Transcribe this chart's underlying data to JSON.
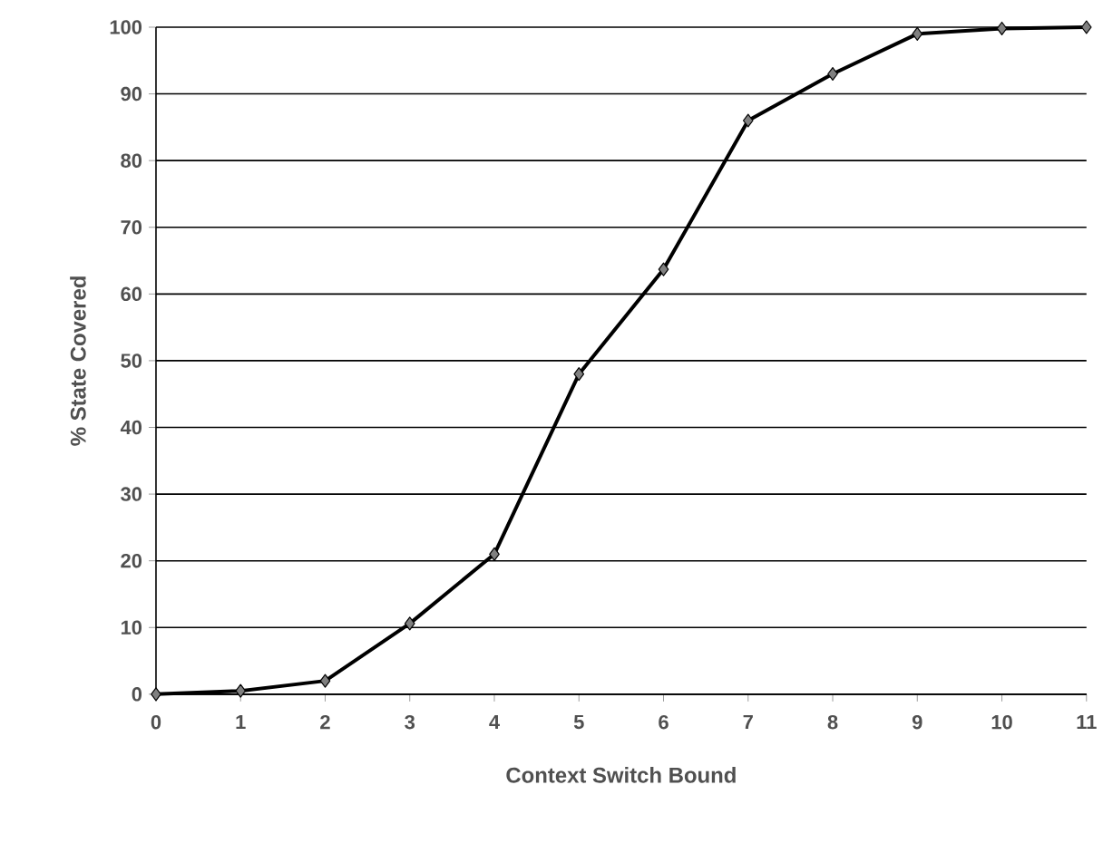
{
  "chart_data": {
    "type": "line",
    "xlabel": "Context Switch Bound",
    "ylabel": "% State Covered",
    "x": [
      0,
      1,
      2,
      3,
      4,
      5,
      6,
      7,
      8,
      9,
      10,
      11
    ],
    "values": [
      0,
      0.5,
      2,
      10.6,
      21,
      48,
      63.7,
      86,
      93,
      99,
      99.8,
      100
    ],
    "color": "#000000",
    "marker": "diamond",
    "line_style": "solid",
    "grid": "y",
    "xlim": [
      0,
      11
    ],
    "ylim": [
      0,
      100
    ],
    "xticks": [
      0,
      1,
      2,
      3,
      4,
      5,
      6,
      7,
      8,
      9,
      10,
      11
    ],
    "yticks": [
      0,
      10,
      20,
      30,
      40,
      50,
      60,
      70,
      80,
      90,
      100
    ]
  }
}
